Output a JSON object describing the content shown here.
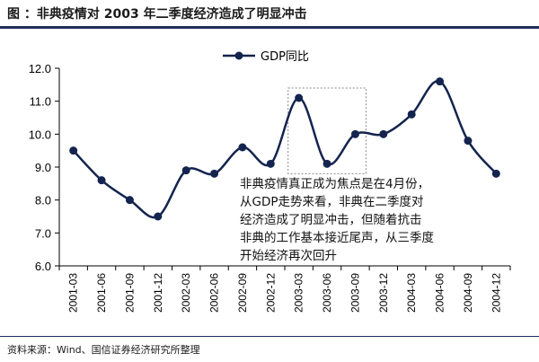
{
  "header": {
    "title": "图    ：非典疫情对 2003 年二季度经济造成了明显冲击"
  },
  "footer": {
    "source": "资料来源：Wind、国信证券经济研究所整理"
  },
  "annotation": {
    "lines": [
      "非典疫情真正成为焦点是在4月份，",
      "从GDP走势来看，非典在二季度对",
      "经济造成了明显冲击，但随着抗击",
      "非典的工作基本接近尾声，从三季度",
      "开始经济再次回升"
    ]
  },
  "chart_data": {
    "type": "line",
    "title": "",
    "xlabel": "",
    "ylabel": "",
    "ylim": [
      6.0,
      12.0
    ],
    "yticks": [
      "6.0",
      "7.0",
      "8.0",
      "9.0",
      "10.0",
      "11.0",
      "12.0"
    ],
    "legend": {
      "position": "top-center",
      "entries": [
        "GDP同比"
      ]
    },
    "grid": false,
    "categories": [
      "2001-03",
      "2001-06",
      "2001-09",
      "2001-12",
      "2002-03",
      "2002-06",
      "2002-09",
      "2002-12",
      "2003-03",
      "2003-06",
      "2003-09",
      "2003-12",
      "2004-03",
      "2004-06",
      "2004-09",
      "2004-12"
    ],
    "series": [
      {
        "name": "GDP同比",
        "values": [
          9.5,
          8.6,
          8.0,
          7.5,
          8.9,
          8.8,
          9.6,
          9.1,
          11.1,
          9.1,
          10.0,
          10.0,
          10.6,
          11.6,
          9.8,
          8.8
        ]
      }
    ],
    "highlight_range": [
      "2003-03",
      "2003-09"
    ],
    "colors": {
      "line": "#14244f",
      "marker": "#14244f",
      "highlight_border": "#888888"
    }
  }
}
